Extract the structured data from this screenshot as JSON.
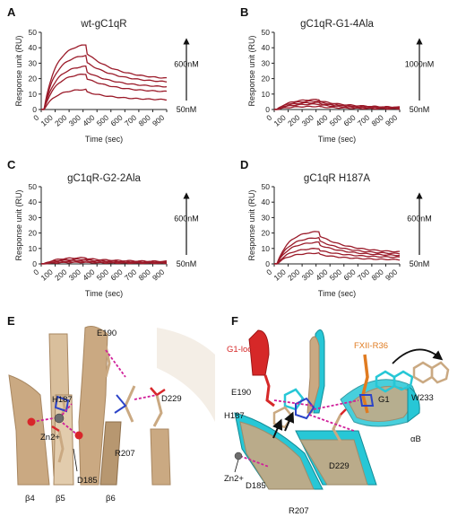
{
  "chart_data": [
    {
      "panel": "A",
      "type": "line",
      "title": "wt-gC1qR",
      "xlabel": "Time (sec)",
      "ylabel": "Response unit (RU)",
      "xlim": [
        0,
        900
      ],
      "ylim": [
        0,
        50
      ],
      "x_ticks": [
        0,
        100,
        200,
        300,
        400,
        500,
        600,
        700,
        800,
        900
      ],
      "y_ticks": [
        0,
        10,
        20,
        30,
        40,
        50
      ],
      "conc_high": "600nM",
      "conc_low": "50nM",
      "peaks": [
        42,
        35,
        28,
        23,
        13
      ],
      "ends": [
        19,
        17,
        14,
        11,
        6
      ],
      "color": "#9b1b2a"
    },
    {
      "panel": "B",
      "type": "line",
      "title": "gC1qR-G1-4Ala",
      "xlabel": "Time (sec)",
      "ylabel": "Response unit (RU)",
      "xlim": [
        0,
        900
      ],
      "ylim": [
        0,
        50
      ],
      "x_ticks": [
        0,
        100,
        200,
        300,
        400,
        500,
        600,
        700,
        800,
        900
      ],
      "y_ticks": [
        0,
        10,
        20,
        30,
        40,
        50
      ],
      "conc_high": "1000nM",
      "conc_low": "50nM",
      "peaks": [
        6.5,
        5.5,
        4.5,
        3.5,
        2
      ],
      "ends": [
        1.2,
        1,
        0.8,
        0.6,
        0.3
      ],
      "color": "#9b1b2a"
    },
    {
      "panel": "C",
      "type": "line",
      "title": "gC1qR-G2-2Ala",
      "xlabel": "Time (sec)",
      "ylabel": "Response unit (RU)",
      "xlim": [
        0,
        900
      ],
      "ylim": [
        0,
        50
      ],
      "x_ticks": [
        0,
        100,
        200,
        300,
        400,
        500,
        600,
        700,
        800,
        900
      ],
      "y_ticks": [
        0,
        10,
        20,
        30,
        40,
        50
      ],
      "conc_high": "600nM",
      "conc_low": "50nM",
      "peaks": [
        4,
        3,
        2.2,
        1.5,
        1
      ],
      "ends": [
        1.5,
        1.1,
        0.8,
        0.6,
        0.4
      ],
      "color": "#9b1b2a"
    },
    {
      "panel": "D",
      "type": "line",
      "title": "gC1qR H187A",
      "xlabel": "Time (sec)",
      "ylabel": "Response unit (RU)",
      "xlim": [
        0,
        900
      ],
      "ylim": [
        0,
        50
      ],
      "x_ticks": [
        0,
        100,
        200,
        300,
        400,
        500,
        600,
        700,
        800,
        900
      ],
      "y_ticks": [
        0,
        10,
        20,
        30,
        40,
        50
      ],
      "conc_high": "600nM",
      "conc_low": "50nM",
      "peaks": [
        21,
        17,
        14,
        10,
        7
      ],
      "ends": [
        7,
        6,
        5,
        4,
        2.5
      ],
      "color": "#9b1b2a"
    }
  ],
  "panel_E": {
    "label": "E",
    "residues": [
      "E190",
      "H187",
      "Zn2+",
      "D229",
      "R207",
      "D185",
      "β4",
      "β5",
      "β6"
    ],
    "colors": {
      "protein": "#caa982",
      "bond": "#d0209a",
      "oxygen": "#d8262a",
      "nitrogen": "#2c44c8",
      "zinc": "#6d6d6d"
    }
  },
  "panel_F": {
    "label": "F",
    "residues": [
      "G1-loop",
      "FXII-R36",
      "E190",
      "H187",
      "G1",
      "W233",
      "Zn2+",
      "D185",
      "D229",
      "αB",
      "R207"
    ],
    "colors": {
      "protein": "#caa982",
      "complex": "#27c7d6",
      "loop": "#d62828",
      "fxii": "#e07b20"
    }
  }
}
